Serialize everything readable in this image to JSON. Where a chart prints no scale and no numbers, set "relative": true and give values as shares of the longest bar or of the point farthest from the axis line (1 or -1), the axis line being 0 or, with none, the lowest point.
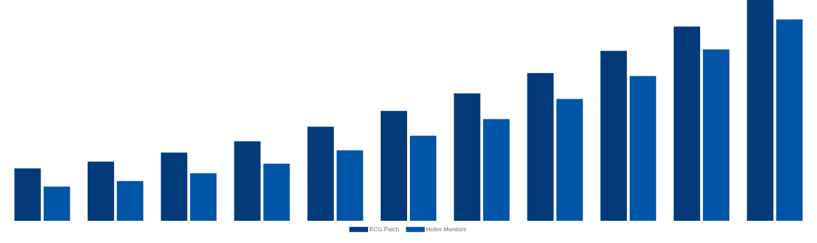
{
  "chart_data": {
    "type": "bar",
    "relative": true,
    "legend": "bottom",
    "categories": [
      null,
      null,
      null,
      null,
      null,
      null,
      null,
      null,
      null,
      null,
      null
    ],
    "series": [
      {
        "name": "ECG Patch",
        "color": "#033b7a",
        "values": [
          0.237,
          0.268,
          0.309,
          0.36,
          0.426,
          0.498,
          0.577,
          0.669,
          0.77,
          0.88,
          1.0
        ]
      },
      {
        "name": "Holter Monitors",
        "color": "#0155a6",
        "values": [
          0.155,
          0.18,
          0.215,
          0.259,
          0.319,
          0.385,
          0.461,
          0.552,
          0.656,
          0.776,
          0.912
        ]
      }
    ]
  }
}
